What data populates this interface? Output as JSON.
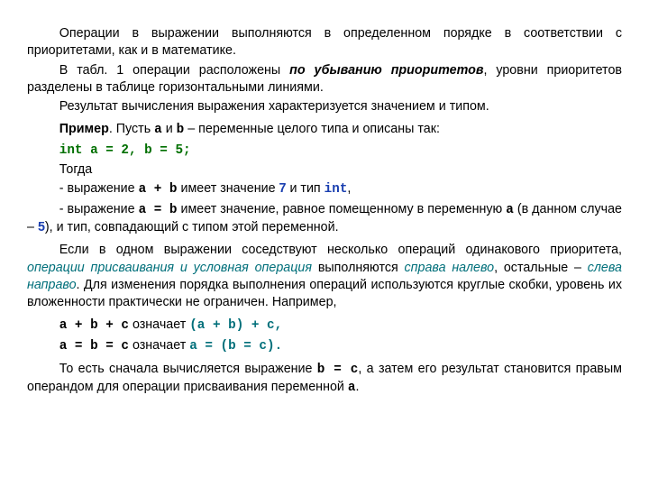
{
  "p1": {
    "pre": "Операции в выражении выполняются в определенном порядке в соответствии с приоритетами, как и в математике."
  },
  "p2": {
    "pre": "В табл. 1 операции расположены ",
    "em": "по убыванию приоритетов",
    "post": ", уровни приоритетов разделены в таблице горизонтальными линиями."
  },
  "p3": {
    "text": "Результат вычисления выражения характеризуется значением и типом."
  },
  "p4": {
    "label": "Пример",
    "pre": ". Пусть ",
    "a": "a",
    "mid1": " и ",
    "b": "b",
    "post": "  – переменные целого типа и описаны так:"
  },
  "p5": {
    "code": "int a = 2, b = 5;"
  },
  "p6": {
    "text": "Тогда"
  },
  "p7": {
    "pre": "-  выражение ",
    "code1": "a + b",
    "mid": "  имеет значение ",
    "seven": "7",
    "mid2": " и тип ",
    "code2": "int",
    "post": ","
  },
  "p8": {
    "pre": "- выражение ",
    "code1": "a = b",
    "mid": "  имеет значение, равное помещенному в переменную ",
    "a": "a",
    "mid2": "  (в данном случае – ",
    "five": "5",
    "post": "), и тип, совпадающий с типом этой переменной."
  },
  "p9": {
    "pre": "Если в одном выражении соседствуют несколько операций одинакового приоритета, ",
    "em1": "операции присваивания и условная операция",
    "mid1": " выполняются ",
    "em2": "справа налево",
    "mid2": ", остальные – ",
    "em3": "слева направо",
    "post": ". Для изменения порядка выполнения операций используются круглые скобки, уровень их вложенности практически не ограничен. Например,"
  },
  "p10": {
    "code1": "a + b + c",
    "mid": "  означает   ",
    "code2": "(a + b) + c,"
  },
  "p11": {
    "code1": "a = b = c",
    "mid": "  означает    ",
    "code2": "a = (b = c)."
  },
  "p12": {
    "pre": "То есть сначала вычисляется выражение ",
    "code1": "b = c",
    "mid": ", а затем его результат становится правым операндом для операции присваивания переменной ",
    "a": "a",
    "post": "."
  },
  "colors": {
    "text": "#000000",
    "codeGreen": "#006f00",
    "refBlue": "#1a3fb0",
    "emphTeal": "#006f7a",
    "background": "#ffffff"
  },
  "typography": {
    "body_font": "Arial",
    "body_size_pt": 11,
    "code_font": "Courier New",
    "line_height": 1.35
  }
}
